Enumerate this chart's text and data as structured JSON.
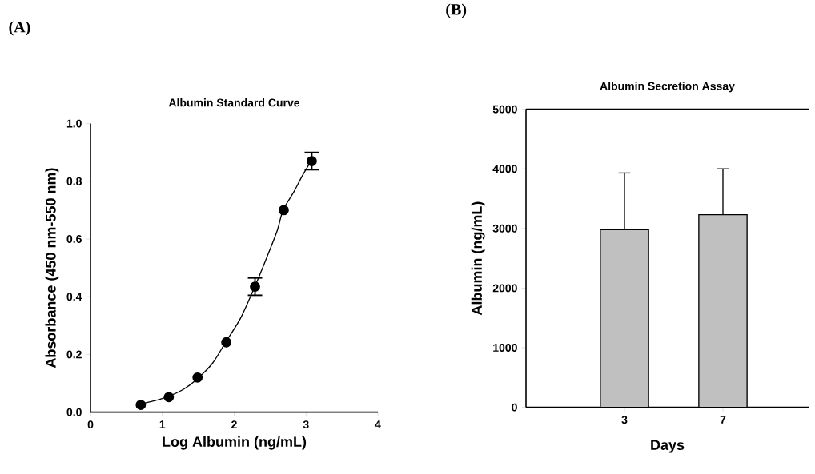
{
  "chart_data": [
    {
      "type": "scatter",
      "title": "Albumin Standard Curve",
      "xlabel": "Log Albumin (ng/mL)",
      "ylabel": "Absorbance (450 nm-550 nm)",
      "annotations": [
        "(A)"
      ],
      "xlim": [
        0,
        4
      ],
      "xticks": [
        0,
        1,
        2,
        3,
        4
      ],
      "ylim": [
        0,
        1.0
      ],
      "yticks": [
        {
          "value": 0,
          "label": "0.0"
        },
        0.2,
        0.4,
        0.6,
        0.8,
        {
          "value": 1.0,
          "label": "1.0"
        }
      ],
      "series": [
        {
          "type": "scatter",
          "color": "#000000",
          "marker": "circle",
          "x": [
            0.7,
            1.09,
            1.49,
            1.89,
            2.29,
            2.69,
            3.08
          ],
          "values": [
            0.025,
            0.052,
            0.12,
            0.242,
            0.435,
            0.7,
            0.87
          ],
          "errors": [
            null,
            null,
            null,
            null,
            0.03,
            null,
            0.03
          ]
        },
        {
          "type": "line",
          "color": "#000000",
          "marker": "none",
          "x": [
            0.69,
            0.9,
            1.08,
            1.3,
            1.49,
            1.7,
            1.88,
            2.09,
            2.29,
            2.46,
            2.6,
            2.68,
            2.83,
            2.95,
            3.08
          ],
          "values": [
            0.028,
            0.04,
            0.054,
            0.08,
            0.116,
            0.17,
            0.242,
            0.326,
            0.437,
            0.54,
            0.63,
            0.7,
            0.763,
            0.82,
            0.874
          ]
        }
      ]
    },
    {
      "type": "bar",
      "title": "Albumin Secretion Assay",
      "xlabel": "Days",
      "ylabel": "Albumin (ng/mL)",
      "annotations": [
        "(B)"
      ],
      "categories": [
        "3",
        "7"
      ],
      "ylim": [
        0,
        5000
      ],
      "yticks": [
        0,
        1000,
        2000,
        3000,
        4000,
        5000
      ],
      "values": [
        2980,
        3230
      ],
      "errors": [
        [
          2980,
          3930
        ],
        [
          3230,
          4000
        ]
      ],
      "color": "#c0c0c0"
    }
  ]
}
